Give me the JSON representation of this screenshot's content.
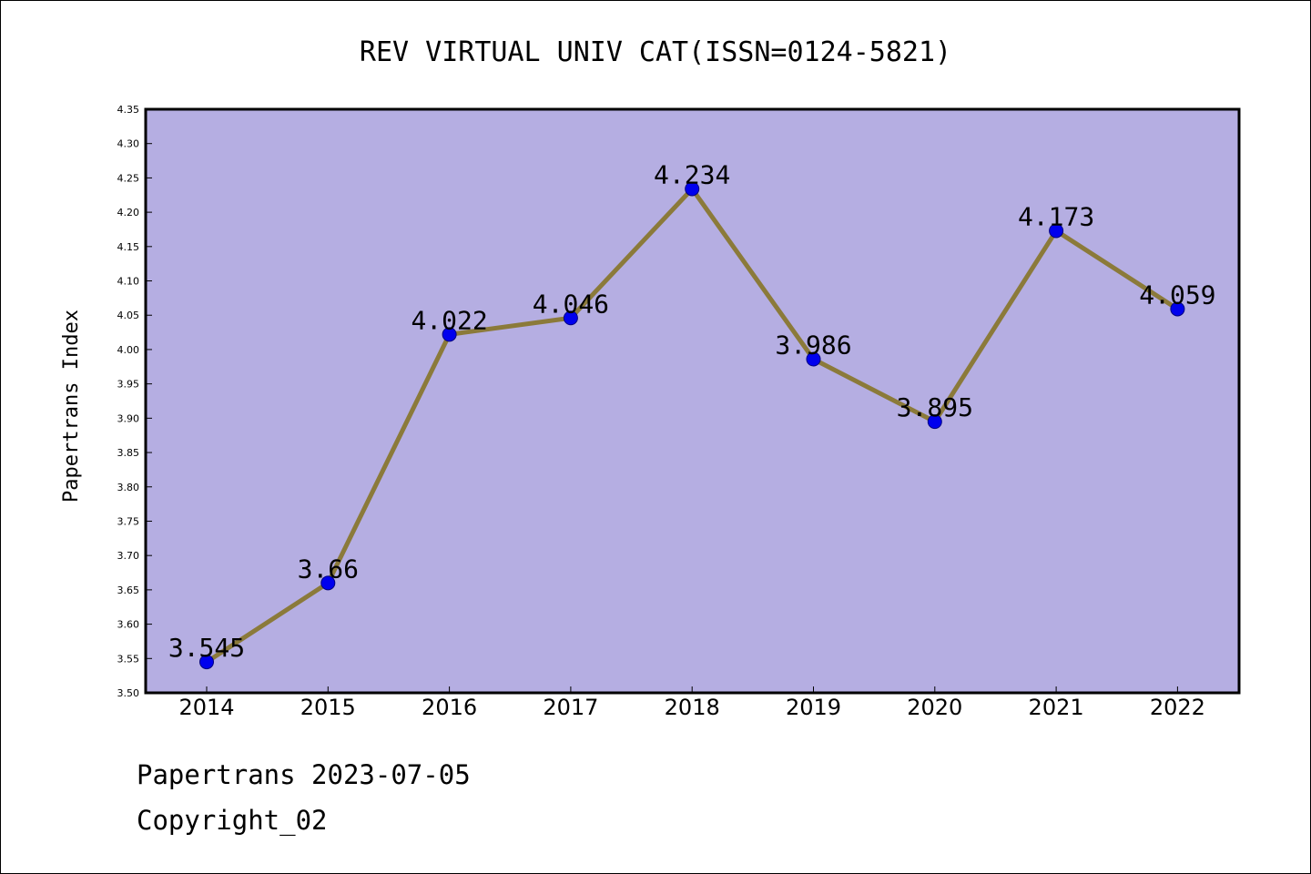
{
  "chart_data": {
    "type": "line",
    "title": "REV VIRTUAL UNIV CAT(ISSN=0124-5821)",
    "xlabel": "",
    "ylabel": "Papertrans Index",
    "categories": [
      "2014",
      "2015",
      "2016",
      "2017",
      "2018",
      "2019",
      "2020",
      "2021",
      "2022"
    ],
    "values": [
      3.545,
      3.66,
      4.022,
      4.046,
      4.234,
      3.986,
      3.895,
      4.173,
      4.059
    ],
    "data_labels": [
      "3.545",
      "3.66",
      "4.022",
      "4.046",
      "4.234",
      "3.986",
      "3.895",
      "4.173",
      "4.059"
    ],
    "ylim": [
      3.5,
      4.35
    ],
    "yticks": [
      "3.50",
      "3.55",
      "3.60",
      "3.65",
      "3.70",
      "3.75",
      "3.80",
      "3.85",
      "3.90",
      "3.95",
      "4.00",
      "4.05",
      "4.10",
      "4.15",
      "4.20",
      "4.25",
      "4.30",
      "4.35"
    ],
    "grid": false,
    "colors": {
      "plot_background": "#b5aee2",
      "line": "#8b7a3a",
      "marker": "#0000ee",
      "marker_edge": "#000080"
    }
  },
  "footer": {
    "line1": "Papertrans 2023-07-05",
    "line2": "Copyright_02"
  }
}
